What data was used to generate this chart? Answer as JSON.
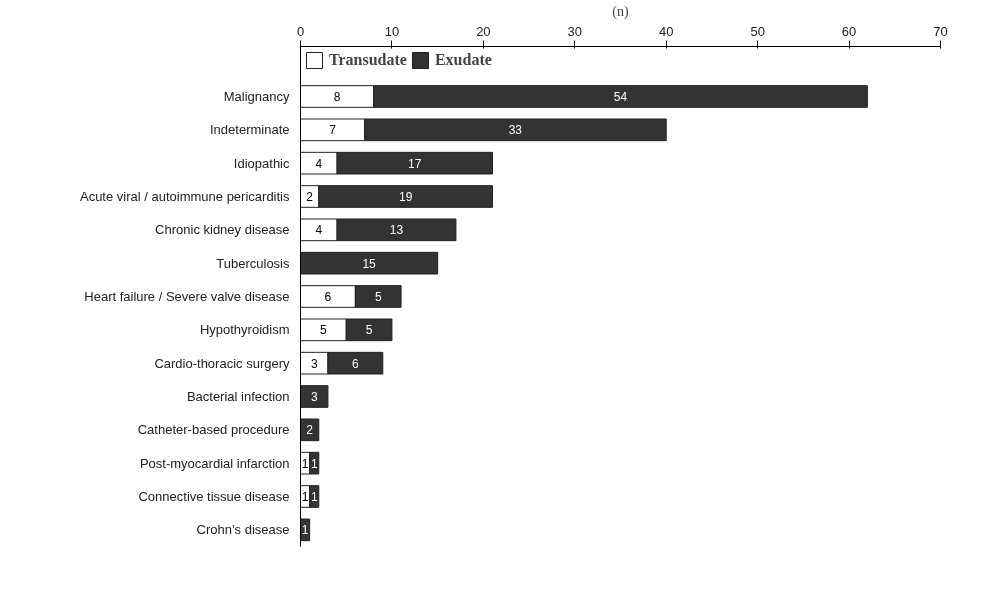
{
  "chart_data": {
    "type": "bar",
    "orientation": "horizontal",
    "stacked": true,
    "xlabel": "(n)",
    "categories": [
      "Malignancy",
      "Indeterminate",
      "Idiopathic",
      "Acute viral / autoimmune pericarditis",
      "Chronic kidney disease",
      "Tuberculosis",
      "Heart failure / Severe valve disease",
      "Hypothyroidism",
      "Cardio-thoracic surgery",
      "Bacterial infection",
      "Catheter-based procedure",
      "Post-myocardial infarction",
      "Connective tissue disease",
      "Crohn’s disease"
    ],
    "series": [
      {
        "name": "Transudate",
        "color": "#ffffff",
        "values": [
          8,
          7,
          4,
          2,
          4,
          null,
          6,
          5,
          3,
          null,
          null,
          1,
          1,
          null
        ]
      },
      {
        "name": "Exudate",
        "color": "#333333",
        "values": [
          54,
          33,
          17,
          19,
          13,
          15,
          5,
          5,
          6,
          3,
          2,
          1,
          1,
          1
        ]
      }
    ],
    "xlim": [
      0,
      70
    ],
    "xticks": [
      0,
      10,
      20,
      30,
      40,
      50,
      60,
      70
    ],
    "grid": false,
    "legend": "top left",
    "data_labels": true
  }
}
